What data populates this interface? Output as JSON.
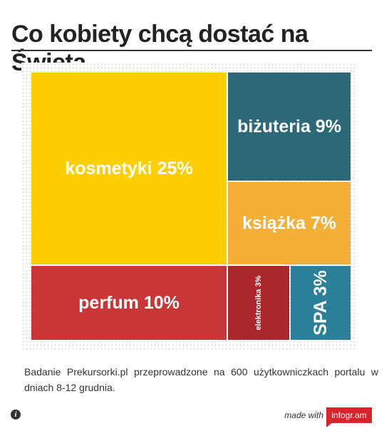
{
  "header": {
    "title": "Co kobiety chcą dostać na Święta"
  },
  "chart_data": {
    "type": "treemap",
    "title": "Co kobiety chcą dostać na Święta",
    "items": [
      {
        "label": "kosmetyki 25%",
        "category": "kosmetyki",
        "value": 25,
        "color": "#fdcf00",
        "vertical": false
      },
      {
        "label": "biżuteria 9%",
        "category": "biżuteria",
        "value": 9,
        "color": "#2b6878",
        "vertical": false
      },
      {
        "label": "książka 7%",
        "category": "książka",
        "value": 7,
        "color": "#f4af36",
        "vertical": false
      },
      {
        "label": "perfum 10%",
        "category": "perfum",
        "value": 10,
        "color": "#c93637",
        "vertical": false
      },
      {
        "label": "elektronika 3%",
        "category": "elektronika",
        "value": 3,
        "color": "#ab272b",
        "vertical": true
      },
      {
        "label": "SPA 3%",
        "category": "SPA",
        "value": 3,
        "color": "#2b7f98",
        "vertical": true
      }
    ]
  },
  "footer": {
    "note": "Badanie Prekursorki.pl przeprowadzone na 600 użytkowniczkach portalu w dniach 8-12 grudnia.",
    "info_icon": "info-icon",
    "made_with": "made with",
    "brand": "infogr.am"
  }
}
